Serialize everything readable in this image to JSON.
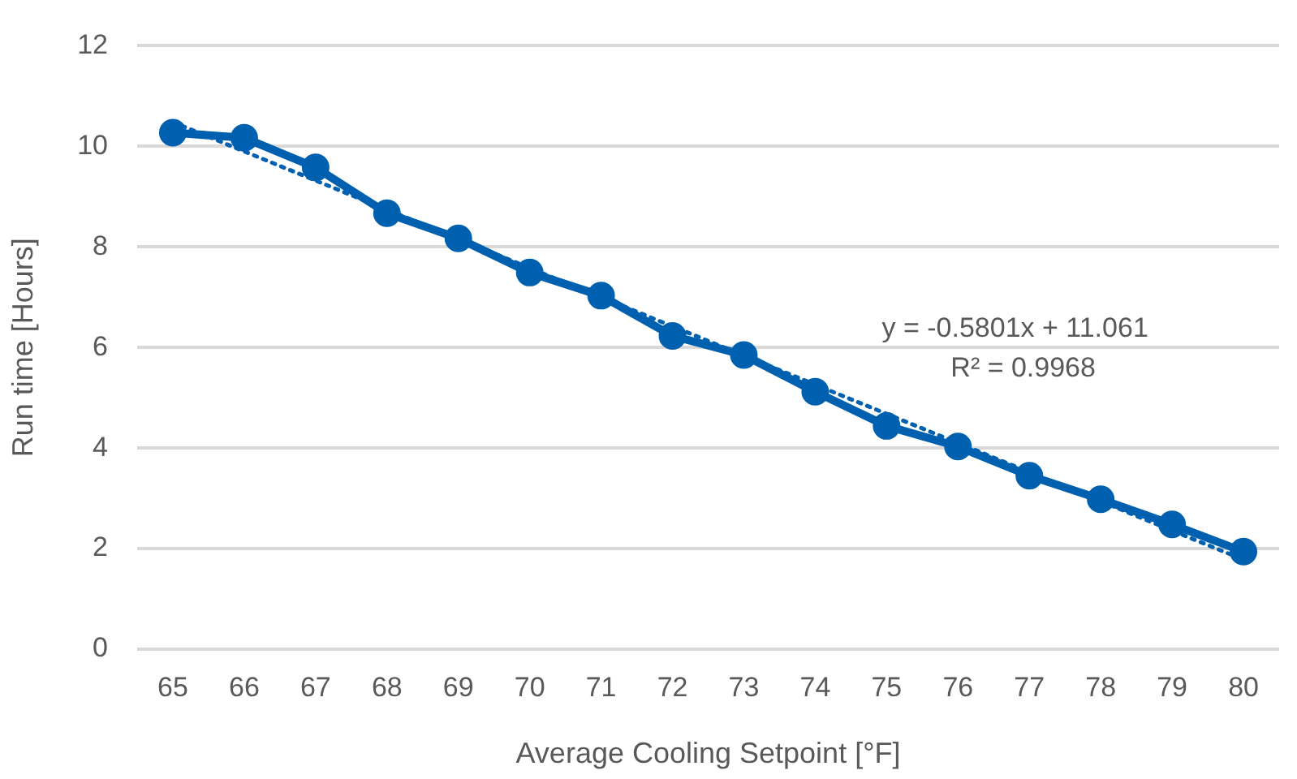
{
  "chart_data": {
    "type": "line",
    "xlabel": "Average Cooling Setpoint [°F]",
    "ylabel": "Run time [Hours]",
    "categories": [
      "65",
      "66",
      "67",
      "68",
      "69",
      "70",
      "71",
      "72",
      "73",
      "74",
      "75",
      "76",
      "77",
      "78",
      "79",
      "80"
    ],
    "series": [
      {
        "color": "#0060b0",
        "marker": "circle",
        "line_style": "solid",
        "values": [
          10.27,
          10.17,
          9.58,
          8.67,
          8.17,
          7.49,
          7.03,
          6.23,
          5.85,
          5.12,
          4.44,
          4.03,
          3.45,
          2.98,
          2.48,
          1.94
        ]
      },
      {
        "color": "#0060b0",
        "marker": "none",
        "line_style": "dotted",
        "values": [
          10.48,
          9.9,
          9.32,
          8.74,
          8.16,
          7.58,
          7.0,
          6.42,
          5.84,
          5.26,
          4.68,
          4.1,
          3.52,
          2.94,
          2.36,
          1.78
        ]
      }
    ],
    "annotations": [
      "y = -0.5801x + 11.061",
      "R² = 0.9968"
    ],
    "ylim": [
      0,
      12
    ],
    "yticks": [
      0,
      2,
      4,
      6,
      8,
      10,
      12
    ],
    "grid": "y",
    "legend": false
  }
}
